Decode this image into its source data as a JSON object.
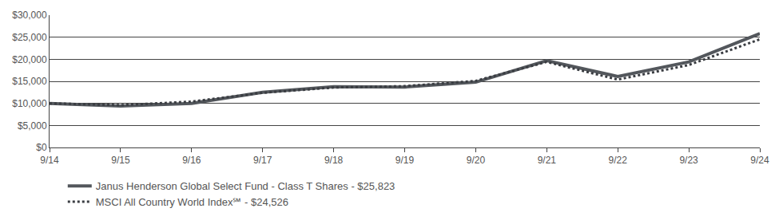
{
  "chart_data": {
    "type": "line",
    "categories": [
      "9/14",
      "9/15",
      "9/16",
      "9/17",
      "9/18",
      "9/19",
      "9/20",
      "9/21",
      "9/22",
      "9/23",
      "9/24"
    ],
    "series": [
      {
        "name": "Janus Henderson Global Select Fund - Class T Shares - $25,823",
        "color": "#53575c",
        "line_style": "solid",
        "values": [
          10000,
          9400,
          10000,
          12500,
          13800,
          13700,
          14800,
          19700,
          16100,
          19400,
          25823
        ]
      },
      {
        "name": "MSCI All Country World Index℠ - $24,526",
        "color": "#3a3d42",
        "line_style": "dotted",
        "values": [
          10000,
          9600,
          10400,
          12400,
          13600,
          13900,
          15100,
          19400,
          15400,
          18700,
          24526
        ]
      }
    ],
    "ylim": [
      0,
      30000
    ],
    "yticks": [
      {
        "value": 0,
        "label": "$0"
      },
      {
        "value": 5000,
        "label": "$5,000"
      },
      {
        "value": 10000,
        "label": "$10,000"
      },
      {
        "value": 15000,
        "label": "$15,000"
      },
      {
        "value": 20000,
        "label": "$20,000"
      },
      {
        "value": 25000,
        "label": "$25,000"
      },
      {
        "value": 30000,
        "label": "$30,000"
      }
    ],
    "grid": true,
    "legend": "bottom left"
  }
}
